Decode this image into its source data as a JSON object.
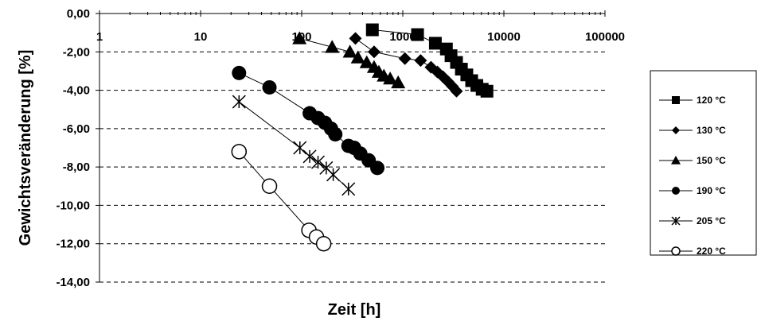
{
  "chart_data": {
    "type": "scatter",
    "title": "",
    "xlabel": "Zeit [h]",
    "ylabel": "Gewichtsveränderung [%]",
    "x_scale": "log",
    "xlim": [
      1,
      100000
    ],
    "ylim": [
      -14,
      0
    ],
    "x_ticks": [
      1,
      10,
      100,
      1000,
      10000,
      100000
    ],
    "x_tick_labels": [
      "1",
      "10",
      "100",
      "1000",
      "10000",
      "100000"
    ],
    "y_ticks": [
      0,
      -2,
      -4,
      -6,
      -8,
      -10,
      -12,
      -14
    ],
    "y_tick_labels": [
      "0,00",
      "-2,00",
      "-4,00",
      "-6,00",
      "-8,00",
      "-10,00",
      "-12,00",
      "-14,00"
    ],
    "grid": "horizontal dashed",
    "legend_position": "right",
    "series": [
      {
        "name": "120 °C",
        "marker": "square",
        "fill": "#000000",
        "x": [
          500,
          1400,
          2100,
          2700,
          3000,
          3400,
          3800,
          4300,
          4800,
          5400,
          6100,
          6800
        ],
        "y": [
          -0.85,
          -1.1,
          -1.55,
          -1.85,
          -2.2,
          -2.55,
          -2.9,
          -3.2,
          -3.5,
          -3.75,
          -3.95,
          -4.05
        ]
      },
      {
        "name": "130 °C",
        "marker": "diamond",
        "fill": "#000000",
        "x": [
          340,
          520,
          1050,
          1500,
          1900,
          2200,
          2500,
          2800,
          3100,
          3400
        ],
        "y": [
          -1.3,
          -2.0,
          -2.35,
          -2.45,
          -2.8,
          -3.05,
          -3.3,
          -3.55,
          -3.8,
          -4.05
        ]
      },
      {
        "name": "150 °C",
        "marker": "triangle",
        "fill": "#000000",
        "x": [
          95,
          200,
          300,
          360,
          440,
          520,
          580,
          650,
          750,
          900
        ],
        "y": [
          -1.3,
          -1.75,
          -2.0,
          -2.3,
          -2.55,
          -2.8,
          -3.05,
          -3.25,
          -3.4,
          -3.6
        ]
      },
      {
        "name": "190 °C",
        "marker": "circle",
        "fill": "#000000",
        "x": [
          24,
          48,
          120,
          145,
          170,
          195,
          215,
          290,
          330,
          380,
          460,
          560
        ],
        "y": [
          -3.1,
          -3.85,
          -5.2,
          -5.45,
          -5.7,
          -6.0,
          -6.3,
          -6.9,
          -7.0,
          -7.3,
          -7.65,
          -8.05
        ]
      },
      {
        "name": "205 °C",
        "marker": "asterisk",
        "fill": "none",
        "x": [
          24,
          96,
          120,
          145,
          175,
          205,
          290
        ],
        "y": [
          -4.6,
          -7.0,
          -7.45,
          -7.75,
          -8.05,
          -8.4,
          -9.15
        ]
      },
      {
        "name": "220 °C",
        "marker": "circle-open",
        "fill": "#ffffff",
        "x": [
          24,
          48,
          118,
          140,
          165
        ],
        "y": [
          -7.2,
          -9.0,
          -11.3,
          -11.65,
          -12.0
        ]
      }
    ],
    "legend_labels": [
      "120 °C",
      "130 °C",
      "150 °C",
      "190 °C",
      "205 °C",
      "220 °C"
    ]
  }
}
